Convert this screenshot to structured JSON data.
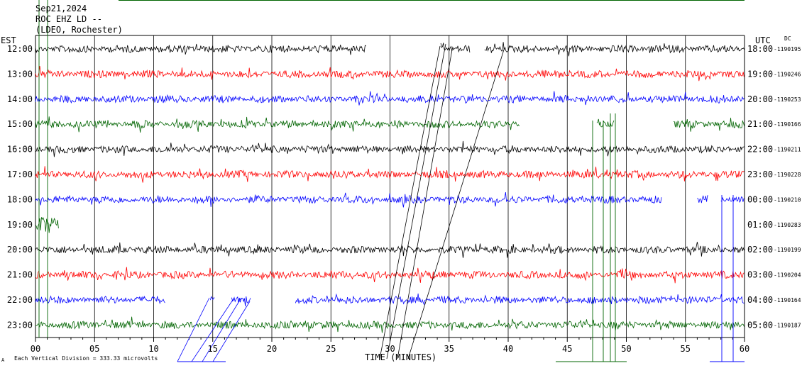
{
  "header": {
    "date": "Sep21,2024",
    "channel": "ROC EHZ LD --",
    "network": "(LDEO, Rochester)"
  },
  "labels": {
    "left_timezone": "EST",
    "right_timezone": "UTC",
    "dc_label": "DC",
    "xlabel": "TIME (MINUTES)",
    "scale_note": "Each Vertical Division =  333.33 microvolts",
    "scale_mark": "A"
  },
  "chart_data": {
    "type": "line",
    "title": "",
    "xlabel": "TIME (MINUTES)",
    "xlim": [
      0,
      60
    ],
    "x_ticks": [
      "00",
      "05",
      "10",
      "15",
      "20",
      "25",
      "30",
      "35",
      "40",
      "45",
      "50",
      "55",
      "60"
    ],
    "colors": [
      "#000000",
      "#ff0000",
      "#0000ff",
      "#006400"
    ],
    "grid": true,
    "series": [
      {
        "est": "12:00",
        "utc": "18:00",
        "dc": "-1190195",
        "color": "#000000",
        "data_segments": [
          [
            0,
            28
          ],
          [
            34.3,
            36.8
          ],
          [
            38,
            60
          ]
        ]
      },
      {
        "est": "13:00",
        "utc": "19:00",
        "dc": "-1190246",
        "color": "#ff0000",
        "data_segments": [
          [
            0,
            60
          ]
        ]
      },
      {
        "est": "14:00",
        "utc": "20:00",
        "dc": "-1190253",
        "color": "#0000ff",
        "data_segments": [
          [
            0,
            60
          ]
        ]
      },
      {
        "est": "15:00",
        "utc": "21:00",
        "dc": "-1190166",
        "color": "#006400",
        "data_segments": [
          [
            0,
            41
          ],
          [
            47.5,
            49
          ],
          [
            54,
            60
          ]
        ]
      },
      {
        "est": "16:00",
        "utc": "22:00",
        "dc": "-1190211",
        "color": "#000000",
        "data_segments": [
          [
            0,
            60
          ]
        ]
      },
      {
        "est": "17:00",
        "utc": "23:00",
        "dc": "-1190228",
        "color": "#ff0000",
        "data_segments": [
          [
            0,
            60
          ]
        ]
      },
      {
        "est": "18:00",
        "utc": "00:00",
        "dc": "-1190210",
        "color": "#0000ff",
        "data_segments": [
          [
            0,
            53
          ],
          [
            56,
            57
          ],
          [
            58,
            60
          ]
        ]
      },
      {
        "est": "19:00",
        "utc": "01:00",
        "dc": "-1190283",
        "color": "#006400",
        "data_segments": [
          [
            0,
            2
          ]
        ]
      },
      {
        "est": "20:00",
        "utc": "02:00",
        "dc": "-1190199",
        "color": "#000000",
        "data_segments": [
          [
            0,
            60
          ]
        ]
      },
      {
        "est": "21:00",
        "utc": "03:00",
        "dc": "-1190204",
        "color": "#ff0000",
        "data_segments": [
          [
            0,
            60
          ]
        ]
      },
      {
        "est": "22:00",
        "utc": "04:00",
        "dc": "-1190164",
        "color": "#0000ff",
        "data_segments": [
          [
            0,
            11
          ],
          [
            14.8,
            15.2
          ],
          [
            16.6,
            18.2
          ],
          [
            22,
            60
          ]
        ]
      },
      {
        "est": "23:00",
        "utc": "05:00",
        "dc": "-1190187",
        "color": "#006400",
        "data_segments": [
          [
            0,
            60
          ]
        ]
      }
    ]
  }
}
